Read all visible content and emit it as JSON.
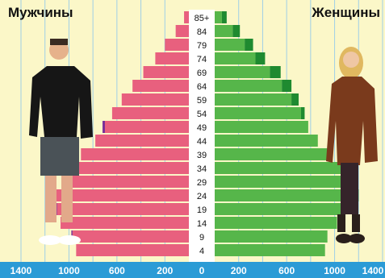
{
  "chart_data": {
    "type": "bar",
    "subtype": "population-pyramid",
    "left_label": "Мужчины",
    "right_label": "Женщины",
    "age_labels": [
      "85+",
      "84",
      "79",
      "74",
      "69",
      "64",
      "59",
      "54",
      "49",
      "44",
      "39",
      "34",
      "29",
      "24",
      "19",
      "14",
      "9",
      "4"
    ],
    "x_ticks_left": [
      "1400",
      "1000",
      "600",
      "200",
      "0"
    ],
    "x_ticks_right": [
      "200",
      "600",
      "1000",
      "1400"
    ],
    "xlim": [
      0,
      1400
    ],
    "grid": true,
    "series": [
      {
        "name": "Мужчины",
        "color": "#e8607e",
        "values": [
          40,
          110,
          200,
          280,
          380,
          470,
          560,
          640,
          700,
          780,
          900,
          1010,
          1060,
          1130,
          1100,
          1070,
          970,
          940
        ]
      },
      {
        "name": "Женщины",
        "color": "#56b64a",
        "values": [
          60,
          150,
          250,
          340,
          460,
          560,
          640,
          720,
          780,
          860,
          980,
          1080,
          1140,
          1170,
          1060,
          1020,
          940,
          920
        ]
      }
    ],
    "overlay_series": [
      {
        "side": "left",
        "color": "#7a2f98",
        "values": [
          0,
          0,
          0,
          0,
          0,
          0,
          0,
          0,
          20,
          0,
          0,
          0,
          0,
          30,
          25,
          0,
          10,
          0
        ]
      },
      {
        "side": "right",
        "color": "#1f8a30",
        "values": [
          40,
          60,
          70,
          80,
          90,
          80,
          60,
          30,
          0,
          0,
          0,
          0,
          20,
          30,
          0,
          0,
          0,
          0
        ]
      }
    ]
  }
}
